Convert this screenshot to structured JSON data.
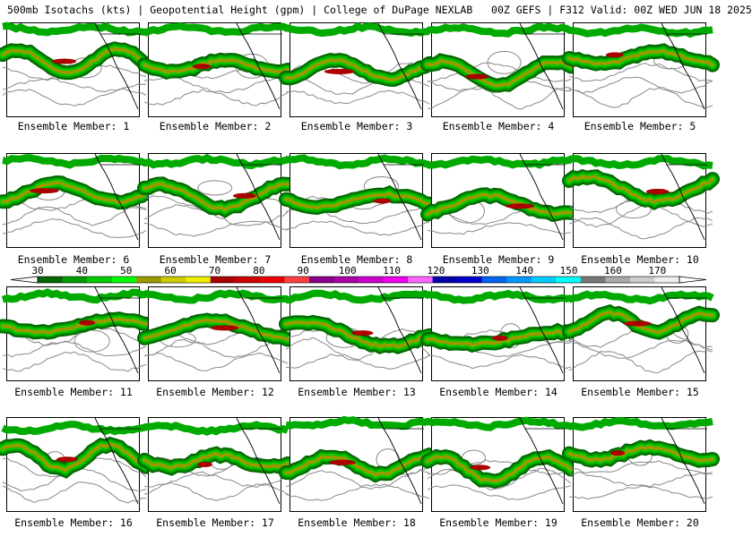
{
  "header": {
    "title": "500mb Isotachs (kts) | Geopotential Height (gpm) | College of DuPage NEXLAB   00Z GEFS | F312 Valid: 00Z WED JUN 18 2025"
  },
  "legend": {
    "ticks": [
      "30",
      "40",
      "50",
      "60",
      "70",
      "80",
      "90",
      "100",
      "110",
      "120",
      "130",
      "140",
      "150",
      "160",
      "170"
    ],
    "colors": [
      "#006600",
      "#009900",
      "#00cc00",
      "#00ff00",
      "#999900",
      "#cccc00",
      "#eeee00",
      "#aa0000",
      "#cc0000",
      "#ee0000",
      "#ff4040",
      "#880088",
      "#aa00aa",
      "#cc00cc",
      "#ee00ee",
      "#ff66ff",
      "#0000aa",
      "#0000cc",
      "#0066ee",
      "#0099ff",
      "#00ccff",
      "#00ffff",
      "#777777",
      "#aaaaaa",
      "#cccccc",
      "#eeeeee"
    ]
  },
  "members": [
    {
      "label": "Ensemble Member: 1"
    },
    {
      "label": "Ensemble Member: 2"
    },
    {
      "label": "Ensemble Member: 3"
    },
    {
      "label": "Ensemble Member: 4"
    },
    {
      "label": "Ensemble Member: 5"
    },
    {
      "label": "Ensemble Member: 6"
    },
    {
      "label": "Ensemble Member: 7"
    },
    {
      "label": "Ensemble Member: 8"
    },
    {
      "label": "Ensemble Member: 9"
    },
    {
      "label": "Ensemble Member: 10"
    },
    {
      "label": "Ensemble Member: 11"
    },
    {
      "label": "Ensemble Member: 12"
    },
    {
      "label": "Ensemble Member: 13"
    },
    {
      "label": "Ensemble Member: 14"
    },
    {
      "label": "Ensemble Member: 15"
    },
    {
      "label": "Ensemble Member: 16"
    },
    {
      "label": "Ensemble Member: 17"
    },
    {
      "label": "Ensemble Member: 18"
    },
    {
      "label": "Ensemble Member: 19"
    },
    {
      "label": "Ensemble Member: 20"
    }
  ]
}
